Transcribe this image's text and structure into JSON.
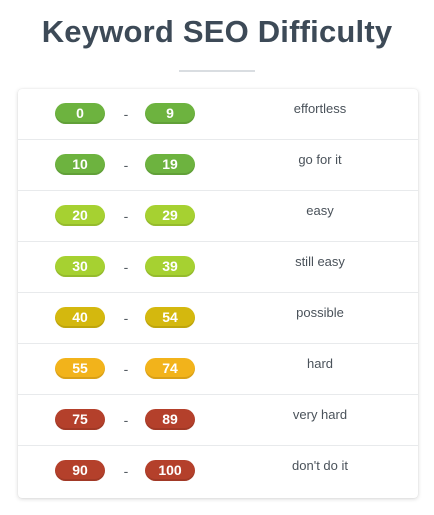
{
  "title": "Keyword SEO Difficulty",
  "separator": "-",
  "rows": [
    {
      "min": "0",
      "max": "9",
      "label": "effortless",
      "color": "#6db33f"
    },
    {
      "min": "10",
      "max": "19",
      "label": "go for it",
      "color": "#6db33f"
    },
    {
      "min": "20",
      "max": "29",
      "label": "easy",
      "color": "#a6d131"
    },
    {
      "min": "30",
      "max": "39",
      "label": "still easy",
      "color": "#a6d131"
    },
    {
      "min": "40",
      "max": "54",
      "label": "possible",
      "color": "#d4b80e"
    },
    {
      "min": "55",
      "max": "74",
      "label": "hard",
      "color": "#f2b31b"
    },
    {
      "min": "75",
      "max": "89",
      "label": "very hard",
      "color": "#b4402b"
    },
    {
      "min": "90",
      "max": "100",
      "label": "don't do it",
      "color": "#b4402b"
    }
  ]
}
